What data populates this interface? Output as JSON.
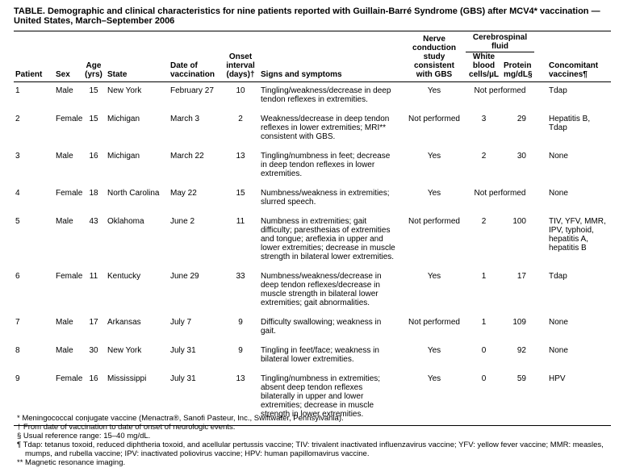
{
  "title": "TABLE. Demographic and clinical characteristics for nine patients reported with Guillain-Barré Syndrome (GBS) after MCV4* vaccination — United States, March–September 2006",
  "table": {
    "group_header": "Cerebrospinal fluid",
    "columns": [
      [
        "Patient"
      ],
      [
        "Sex"
      ],
      [
        "Age",
        "(yrs)"
      ],
      [
        "State"
      ],
      [
        "Date of",
        "vaccination"
      ],
      [
        "Onset",
        "interval",
        "(days)†"
      ],
      [
        "Signs and symptoms"
      ],
      [
        "Nerve",
        "conduction",
        "study",
        "consistent",
        "with GBS"
      ],
      [
        "White",
        "blood",
        "cells/µL"
      ],
      [
        "Protein",
        "mg/dL§"
      ],
      [
        "Concomitant",
        "vaccines¶"
      ]
    ],
    "rows": [
      [
        "1",
        "Male",
        "15",
        "New York",
        "February 27",
        "10",
        "Tingling/weakness/decrease in deep tendon reflexes in extremities.",
        "Yes",
        "Not performed",
        "Tdap"
      ],
      [
        "2",
        "Female",
        "15",
        "Michigan",
        "March 3",
        "2",
        "Weakness/decrease in deep tendon reflexes in lower extremities; MRI** consistent with GBS.",
        "Not performed",
        "3",
        "29",
        "Hepatitis B, Tdap"
      ],
      [
        "3",
        "Male",
        "16",
        "Michigan",
        "March 22",
        "13",
        "Tingling/numbness in feet; decrease in deep tendon reflexes in lower extremities.",
        "Yes",
        "2",
        "30",
        "None"
      ],
      [
        "4",
        "Female",
        "18",
        "North Carolina",
        "May 22",
        "15",
        "Numbness/weakness in extremities; slurred speech.",
        "Yes",
        "Not performed",
        "None"
      ],
      [
        "5",
        "Male",
        "43",
        "Oklahoma",
        "June 2",
        "11",
        "Numbness in extremities; gait difficulty; paresthesias of extremities and tongue; areflexia in upper and lower extremities; decrease in muscle strength in bilateral lower extremities.",
        "Not performed",
        "2",
        "100",
        "TIV, YFV, MMR, IPV, typhoid, hepatitis A, hepatitis B"
      ],
      [
        "6",
        "Female",
        "11",
        "Kentucky",
        "June 29",
        "33",
        "Numbness/weakness/decrease in deep tendon reflexes/decrease in muscle strength in bilateral lower extremities; gait abnormalities.",
        "Yes",
        "1",
        "17",
        "Tdap"
      ],
      [
        "7",
        "Male",
        "17",
        "Arkansas",
        "July 7",
        "9",
        "Difficulty swallowing; weakness in gait.",
        "Not performed",
        "1",
        "109",
        "None"
      ],
      [
        "8",
        "Male",
        "30",
        "New York",
        "July 31",
        "9",
        "Tingling in feet/face; weakness in bilateral lower extremities.",
        "Yes",
        "0",
        "92",
        "None"
      ],
      [
        "9",
        "Female",
        "16",
        "Mississippi",
        "July 31",
        "13",
        "Tingling/numbness in extremities; absent deep tendon reflexes bilaterally in upper and lower extremities; decrease in muscle strength in lower extremities.",
        "Yes",
        "0",
        "59",
        "HPV"
      ]
    ]
  },
  "footnotes": [
    "* Meningococcal conjugate vaccine (Menactra®, Sanofi Pasteur, Inc., Swiftwater, Pennsylvania).",
    "† From date of vaccination to date of onset of neurologic events.",
    "§ Usual reference range: 15–40 mg/dL.",
    "¶ Tdap: tetanus toxoid, reduced diphtheria toxoid, and acellular pertussis vaccine; TIV: trivalent inactivated influenzavirus vaccine; YFV: yellow fever vaccine; MMR: measles, mumps, and rubella vaccine; IPV: inactivated poliovirus vaccine; HPV: human papillomavirus vaccine.",
    "** Magnetic resonance imaging."
  ]
}
